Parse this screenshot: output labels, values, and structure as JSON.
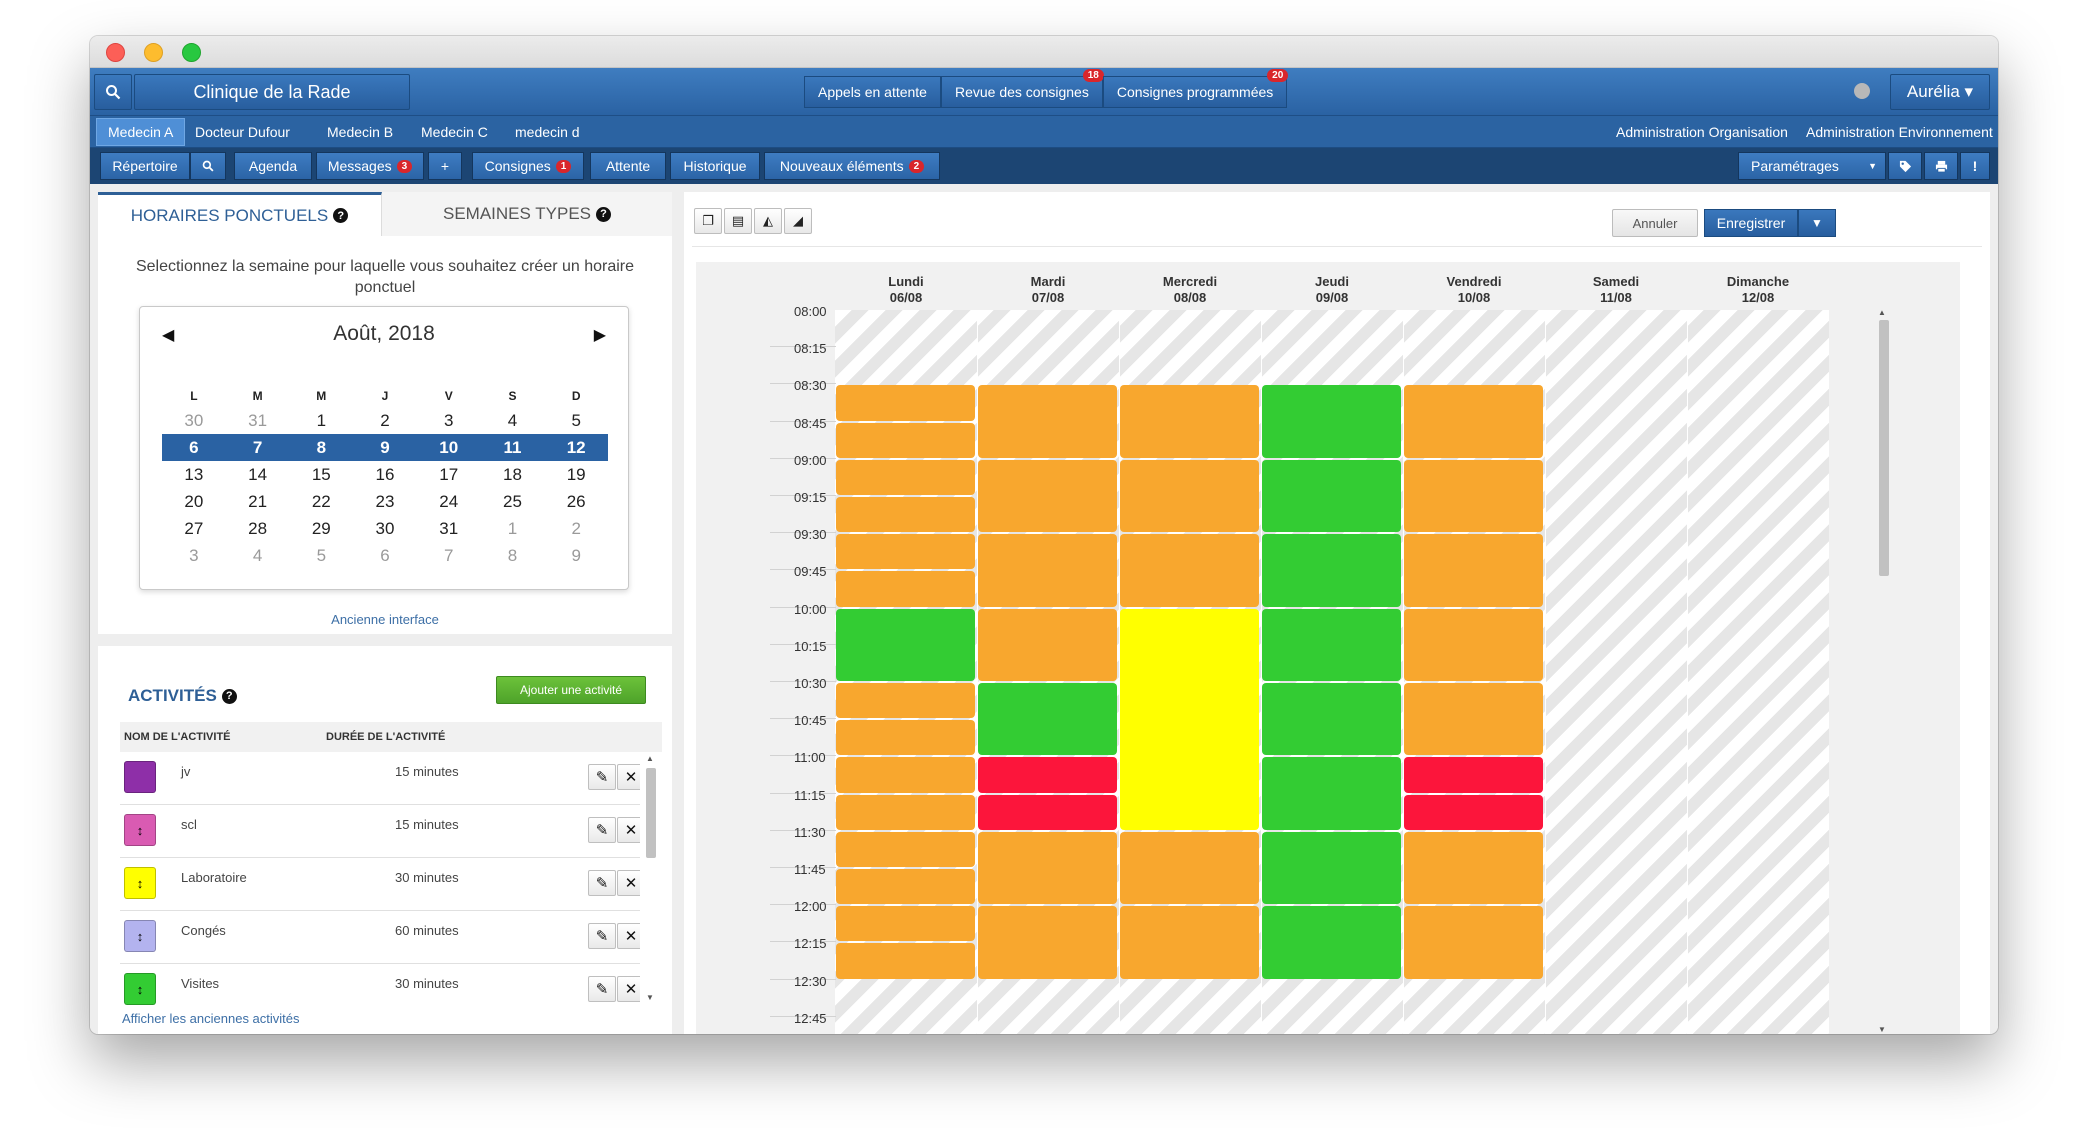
{
  "header": {
    "clinic_name": "Clinique de la Rade",
    "buttons": [
      {
        "label": "Appels en attente",
        "badge": ""
      },
      {
        "label": "Revue des consignes",
        "badge": "18"
      },
      {
        "label": "Consignes programmées",
        "badge": "20"
      }
    ],
    "user": "Aurélia ▾"
  },
  "doctors": [
    "Medecin A",
    "Docteur Dufour",
    "Medecin B",
    "Medecin C",
    "medecin d"
  ],
  "admin_links": [
    "Administration Organisation",
    "Administration Environnement"
  ],
  "nav": {
    "repertoire": "Répertoire",
    "agenda": "Agenda",
    "messages": "Messages",
    "messages_badge": "3",
    "plus": "+",
    "consignes": "Consignes",
    "consignes_badge": "1",
    "attente": "Attente",
    "historique": "Historique",
    "nouveaux": "Nouveaux éléments",
    "nouveaux_badge": "2",
    "parametrages": "Paramétrages"
  },
  "calendar_panel": {
    "tab_active": "HORAIRES PONCTUELS",
    "tab_inactive": "SEMAINES TYPES",
    "instruction": "Selectionnez la semaine pour laquelle vous souhaitez créer un horaire ponctuel",
    "month_title": "Août, 2018",
    "weekdays": [
      "L",
      "M",
      "M",
      "J",
      "V",
      "S",
      "D"
    ],
    "weeks": [
      [
        {
          "d": "30",
          "m": true
        },
        {
          "d": "31",
          "m": true
        },
        {
          "d": "1"
        },
        {
          "d": "2"
        },
        {
          "d": "3"
        },
        {
          "d": "4"
        },
        {
          "d": "5"
        }
      ],
      [
        {
          "d": "6"
        },
        {
          "d": "7"
        },
        {
          "d": "8"
        },
        {
          "d": "9"
        },
        {
          "d": "10"
        },
        {
          "d": "11"
        },
        {
          "d": "12"
        }
      ],
      [
        {
          "d": "13"
        },
        {
          "d": "14"
        },
        {
          "d": "15"
        },
        {
          "d": "16"
        },
        {
          "d": "17"
        },
        {
          "d": "18"
        },
        {
          "d": "19"
        }
      ],
      [
        {
          "d": "20"
        },
        {
          "d": "21"
        },
        {
          "d": "22"
        },
        {
          "d": "23"
        },
        {
          "d": "24"
        },
        {
          "d": "25"
        },
        {
          "d": "26"
        }
      ],
      [
        {
          "d": "27"
        },
        {
          "d": "28"
        },
        {
          "d": "29"
        },
        {
          "d": "30"
        },
        {
          "d": "31"
        },
        {
          "d": "1",
          "m": true
        },
        {
          "d": "2",
          "m": true
        }
      ],
      [
        {
          "d": "3",
          "m": true
        },
        {
          "d": "4",
          "m": true
        },
        {
          "d": "5",
          "m": true
        },
        {
          "d": "6",
          "m": true
        },
        {
          "d": "7",
          "m": true
        },
        {
          "d": "8",
          "m": true
        },
        {
          "d": "9",
          "m": true
        }
      ]
    ],
    "selected_week": 1,
    "old_interface": "Ancienne interface"
  },
  "activities": {
    "title": "ACTIVITÉS",
    "add_label": "Ajouter une activité",
    "col_name": "NOM DE L'ACTIVITÉ",
    "col_duration": "DURÉE DE L'ACTIVITÉ",
    "items": [
      {
        "name": "jv",
        "duration": "15 minutes",
        "color": "#8e2fa8",
        "glyph": ""
      },
      {
        "name": "scl",
        "duration": "15 minutes",
        "color": "#d95bb2",
        "glyph": "↕"
      },
      {
        "name": "Laboratoire",
        "duration": "30 minutes",
        "color": "#ffff00",
        "glyph": "↕"
      },
      {
        "name": "Congés",
        "duration": "60 minutes",
        "color": "#b3b3ef",
        "glyph": "↕"
      },
      {
        "name": "Visites",
        "duration": "30 minutes",
        "color": "#33cc33",
        "glyph": "↕"
      }
    ],
    "show_old": "Afficher les anciennes activités"
  },
  "schedule": {
    "cancel_label": "Annuler",
    "save_label": "Enregistrer",
    "save_dropdown": "▼",
    "days": [
      {
        "name": "Lundi",
        "date": "06/08"
      },
      {
        "name": "Mardi",
        "date": "07/08"
      },
      {
        "name": "Mercredi",
        "date": "08/08"
      },
      {
        "name": "Jeudi",
        "date": "09/08"
      },
      {
        "name": "Vendredi",
        "date": "10/08"
      },
      {
        "name": "Samedi",
        "date": "11/08"
      },
      {
        "name": "Dimanche",
        "date": "12/08"
      }
    ],
    "times": [
      "08:00",
      "08:15",
      "08:30",
      "08:45",
      "09:00",
      "09:15",
      "09:30",
      "09:45",
      "10:00",
      "10:15",
      "10:30",
      "10:45",
      "11:00",
      "11:15",
      "11:30",
      "11:45",
      "12:00",
      "12:15",
      "12:30",
      "12:45"
    ],
    "colors": {
      "orange": "#f8a72e",
      "green": "#33cc33",
      "yellow": "#ffff00",
      "red": "#fc153b"
    },
    "blocks": [
      {
        "day": 0,
        "start": "08:30",
        "end": "08:45",
        "color": "orange"
      },
      {
        "day": 0,
        "start": "08:45",
        "end": "09:00",
        "color": "orange"
      },
      {
        "day": 0,
        "start": "09:00",
        "end": "09:15",
        "color": "orange"
      },
      {
        "day": 0,
        "start": "09:15",
        "end": "09:30",
        "color": "orange"
      },
      {
        "day": 0,
        "start": "09:30",
        "end": "09:45",
        "color": "orange"
      },
      {
        "day": 0,
        "start": "09:45",
        "end": "10:00",
        "color": "orange"
      },
      {
        "day": 0,
        "start": "10:00",
        "end": "10:30",
        "color": "green"
      },
      {
        "day": 0,
        "start": "10:30",
        "end": "10:45",
        "color": "orange"
      },
      {
        "day": 0,
        "start": "10:45",
        "end": "11:00",
        "color": "orange"
      },
      {
        "day": 0,
        "start": "11:00",
        "end": "11:15",
        "color": "orange"
      },
      {
        "day": 0,
        "start": "11:15",
        "end": "11:30",
        "color": "orange"
      },
      {
        "day": 0,
        "start": "11:30",
        "end": "11:45",
        "color": "orange"
      },
      {
        "day": 0,
        "start": "11:45",
        "end": "12:00",
        "color": "orange"
      },
      {
        "day": 0,
        "start": "12:00",
        "end": "12:15",
        "color": "orange"
      },
      {
        "day": 0,
        "start": "12:15",
        "end": "12:30",
        "color": "orange"
      },
      {
        "day": 1,
        "start": "08:30",
        "end": "09:00",
        "color": "orange"
      },
      {
        "day": 1,
        "start": "09:00",
        "end": "09:30",
        "color": "orange"
      },
      {
        "day": 1,
        "start": "09:30",
        "end": "10:00",
        "color": "orange"
      },
      {
        "day": 1,
        "start": "10:00",
        "end": "10:30",
        "color": "orange"
      },
      {
        "day": 1,
        "start": "10:30",
        "end": "11:00",
        "color": "green"
      },
      {
        "day": 1,
        "start": "11:00",
        "end": "11:15",
        "color": "red"
      },
      {
        "day": 1,
        "start": "11:15",
        "end": "11:30",
        "color": "red"
      },
      {
        "day": 1,
        "start": "11:30",
        "end": "12:00",
        "color": "orange"
      },
      {
        "day": 1,
        "start": "12:00",
        "end": "12:30",
        "color": "orange"
      },
      {
        "day": 2,
        "start": "08:30",
        "end": "09:00",
        "color": "orange"
      },
      {
        "day": 2,
        "start": "09:00",
        "end": "09:30",
        "color": "orange"
      },
      {
        "day": 2,
        "start": "09:30",
        "end": "10:00",
        "color": "orange"
      },
      {
        "day": 2,
        "start": "10:00",
        "end": "11:30",
        "color": "yellow"
      },
      {
        "day": 2,
        "start": "11:30",
        "end": "12:00",
        "color": "orange"
      },
      {
        "day": 2,
        "start": "12:00",
        "end": "12:30",
        "color": "orange"
      },
      {
        "day": 3,
        "start": "08:30",
        "end": "09:00",
        "color": "green"
      },
      {
        "day": 3,
        "start": "09:00",
        "end": "09:30",
        "color": "green"
      },
      {
        "day": 3,
        "start": "09:30",
        "end": "10:00",
        "color": "green"
      },
      {
        "day": 3,
        "start": "10:00",
        "end": "10:30",
        "color": "green"
      },
      {
        "day": 3,
        "start": "10:30",
        "end": "11:00",
        "color": "green"
      },
      {
        "day": 3,
        "start": "11:00",
        "end": "11:30",
        "color": "green"
      },
      {
        "day": 3,
        "start": "11:30",
        "end": "12:00",
        "color": "green"
      },
      {
        "day": 3,
        "start": "12:00",
        "end": "12:30",
        "color": "green"
      },
      {
        "day": 4,
        "start": "08:30",
        "end": "09:00",
        "color": "orange"
      },
      {
        "day": 4,
        "start": "09:00",
        "end": "09:30",
        "color": "orange"
      },
      {
        "day": 4,
        "start": "09:30",
        "end": "10:00",
        "color": "orange"
      },
      {
        "day": 4,
        "start": "10:00",
        "end": "10:30",
        "color": "orange"
      },
      {
        "day": 4,
        "start": "10:30",
        "end": "11:00",
        "color": "orange"
      },
      {
        "day": 4,
        "start": "11:00",
        "end": "11:15",
        "color": "red"
      },
      {
        "day": 4,
        "start": "11:15",
        "end": "11:30",
        "color": "red"
      },
      {
        "day": 4,
        "start": "11:30",
        "end": "12:00",
        "color": "orange"
      },
      {
        "day": 4,
        "start": "12:00",
        "end": "12:30",
        "color": "orange"
      }
    ]
  }
}
